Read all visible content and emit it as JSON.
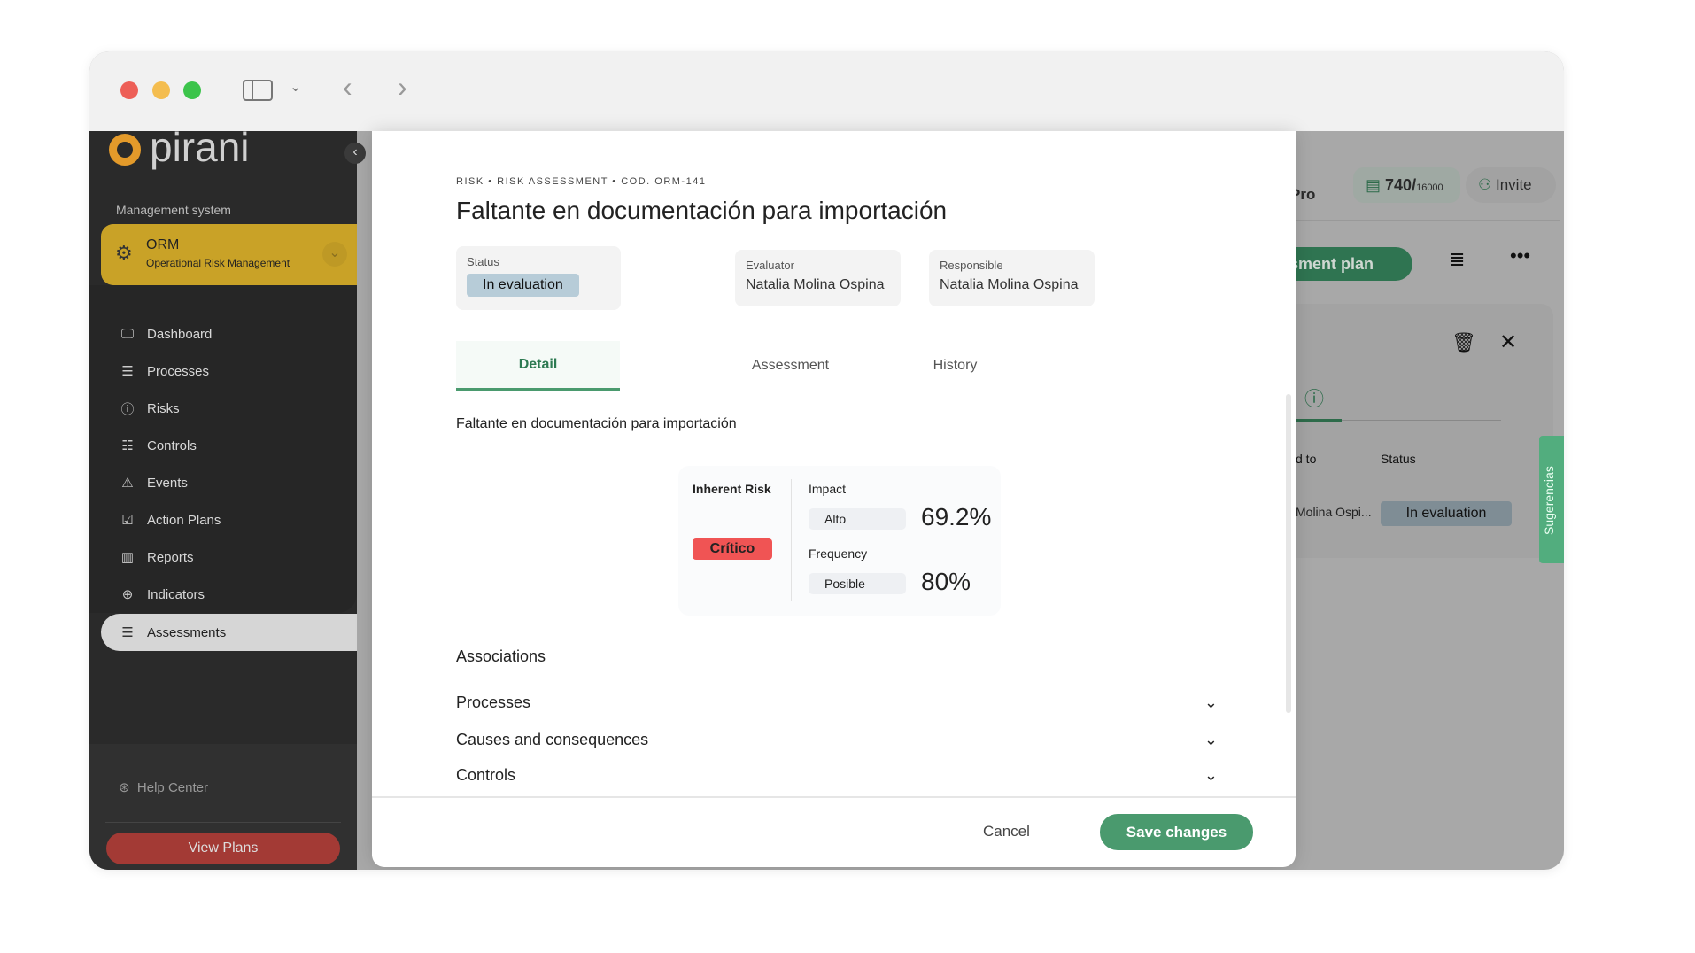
{
  "window": {
    "controls": [
      "close",
      "minimize",
      "maximize"
    ]
  },
  "sidebar": {
    "logo": "pirani",
    "section_label": "Management system",
    "module": {
      "title": "ORM",
      "subtitle": "Operational Risk Management"
    },
    "items": [
      {
        "label": "Dashboard",
        "icon": "monitor-icon"
      },
      {
        "label": "Processes",
        "icon": "list-icon"
      },
      {
        "label": "Risks",
        "icon": "alert-circle-icon"
      },
      {
        "label": "Controls",
        "icon": "sliders-icon"
      },
      {
        "label": "Events",
        "icon": "warning-icon"
      },
      {
        "label": "Action Plans",
        "icon": "checkbox-icon"
      },
      {
        "label": "Reports",
        "icon": "chart-icon"
      },
      {
        "label": "Indicators",
        "icon": "crosshair-icon"
      },
      {
        "label": "Assessments",
        "icon": "assessment-icon",
        "active": true
      }
    ],
    "help": "Help Center",
    "view_plans": "View Plans"
  },
  "background": {
    "plan": "Pro",
    "records": "740/",
    "records_max": "16000",
    "invite": "Invite",
    "assessment_plan": "sessment plan",
    "col_assigned": "d to",
    "col_status": "Status",
    "row_assigned": "Molina Ospi...",
    "row_status": "In evaluation",
    "suggestions": "Sugerencias"
  },
  "modal": {
    "breadcrumb": "RISK • RISK ASSESSMENT • COD. ORM-141",
    "title": "Faltante en documentación para importación",
    "status_label": "Status",
    "status": "In evaluation",
    "evaluator_label": "Evaluator",
    "evaluator": "Natalia Molina Ospina",
    "responsible_label": "Responsible",
    "responsible": "Natalia Molina Ospina",
    "tabs": [
      {
        "label": "Detail",
        "active": true
      },
      {
        "label": "Assessment"
      },
      {
        "label": "History"
      }
    ],
    "description": "Faltante en documentación para importación",
    "risk": {
      "inherent_label": "Inherent Risk",
      "inherent": "Crítico",
      "impact_label": "Impact",
      "impact_level": "Alto",
      "impact_value": "69.2%",
      "frequency_label": "Frequency",
      "frequency_level": "Posible",
      "frequency_value": "80%"
    },
    "associations_title": "Associations",
    "associations": [
      "Processes",
      "Causes and consequences",
      "Controls"
    ],
    "cancel": "Cancel",
    "save": "Save changes"
  },
  "colors": {
    "accent": "#4a9a6e",
    "critical": "#f05454",
    "status_badge": "#b7ccd8",
    "sidebar": "#2a2a2a",
    "module": "#c9a227"
  }
}
